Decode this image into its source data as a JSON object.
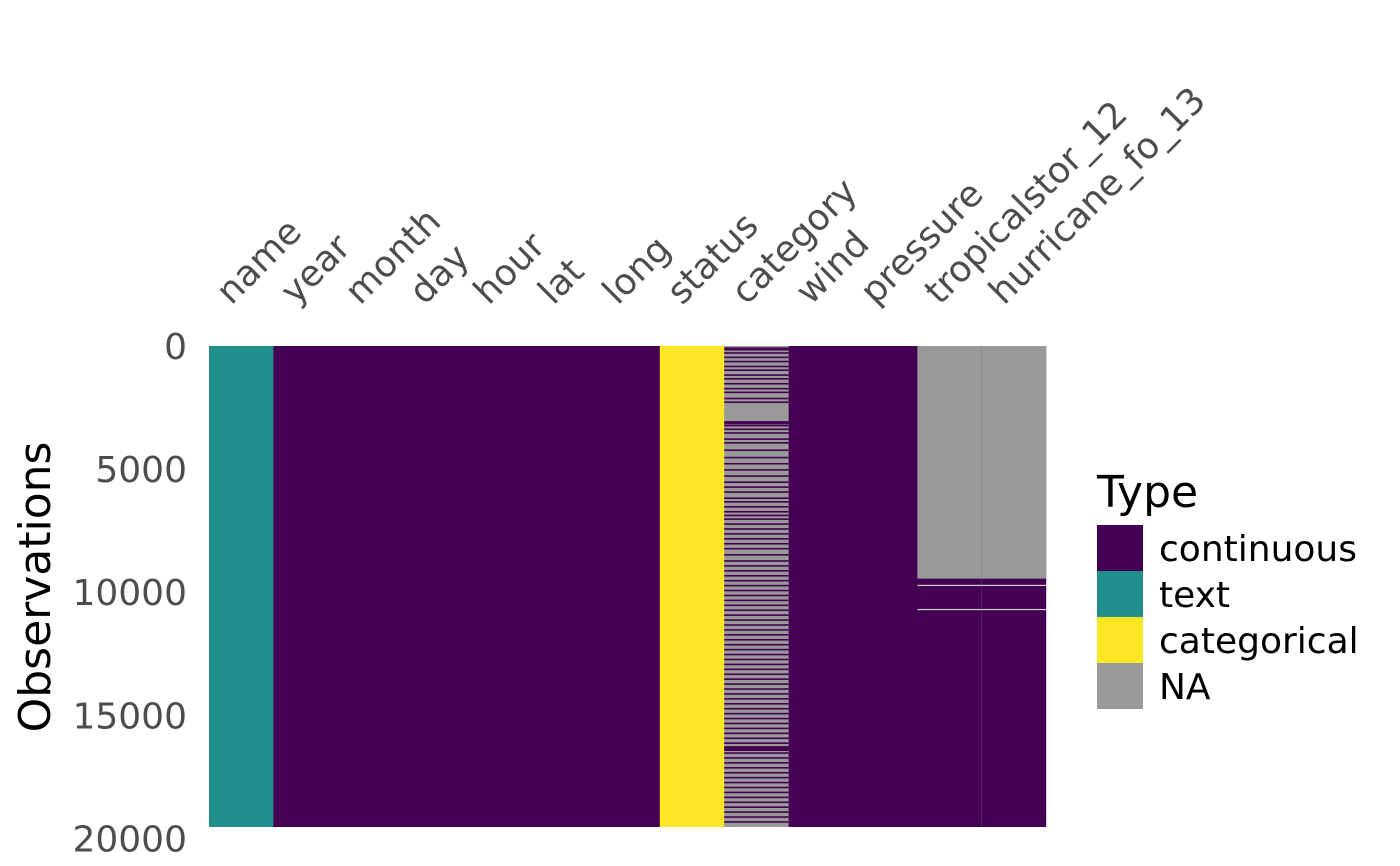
{
  "chart_data": {
    "type": "heatmap",
    "title": "",
    "xlabel": "",
    "ylabel": "Observations",
    "ylim": [
      0,
      19537
    ],
    "y_ticks": [
      "0",
      "5000",
      "10000",
      "15000",
      "20000"
    ],
    "y_tick_values": [
      0,
      5000,
      10000,
      15000,
      20000
    ],
    "columns": [
      {
        "name": "name",
        "type": "text"
      },
      {
        "name": "year",
        "type": "continuous"
      },
      {
        "name": "month",
        "type": "continuous"
      },
      {
        "name": "day",
        "type": "continuous"
      },
      {
        "name": "hour",
        "type": "continuous"
      },
      {
        "name": "lat",
        "type": "continuous"
      },
      {
        "name": "long",
        "type": "continuous"
      },
      {
        "name": "status",
        "type": "categorical"
      },
      {
        "name": "category",
        "type": "continuous",
        "mostly_na": true
      },
      {
        "name": "wind",
        "type": "continuous"
      },
      {
        "name": "pressure",
        "type": "continuous"
      },
      {
        "name": "tropicalstor_12",
        "type": "continuous",
        "na_range": [
          0,
          9450
        ]
      },
      {
        "name": "hurricane_fo_13",
        "type": "continuous",
        "na_range": [
          0,
          9450
        ]
      }
    ],
    "category_non_na_rows": [
      60,
      120,
      250,
      430,
      600,
      800,
      950,
      1150,
      1300,
      1500,
      1700,
      1850,
      2100,
      2250,
      3200,
      3350,
      3500,
      3750,
      3900,
      4200,
      4500,
      4750,
      5000,
      5250,
      5500,
      5700,
      5900,
      6150,
      6300,
      6500,
      6700,
      6850,
      7000,
      7200,
      7400,
      7600,
      7800,
      8000,
      8200,
      8450,
      8700,
      8900,
      9100,
      9300,
      9500,
      9700,
      9900,
      10100,
      10300,
      10500,
      10700,
      10900,
      11100,
      11300,
      11500,
      11700,
      11900,
      12100,
      12300,
      12500,
      12700,
      12900,
      13100,
      13300,
      13500,
      13700,
      13900,
      14100,
      14300,
      14500,
      14700,
      14900,
      15100,
      15300,
      15500,
      15700,
      15900,
      16100,
      16300,
      16500,
      16700,
      16900,
      17100,
      17300,
      17500,
      17700,
      17900,
      18100,
      18300,
      18500,
      18700,
      18900,
      19100,
      19300
    ],
    "category_thick_non_na": [
      [
        3050,
        3180
      ],
      [
        16250,
        16450
      ]
    ],
    "tropicalstor_non_na_gaps": [
      [
        9700,
        9720
      ],
      [
        10680,
        10700
      ]
    ],
    "legend": {
      "title": "Type",
      "placement": "right",
      "entries": [
        {
          "label": "continuous",
          "color": "#440154"
        },
        {
          "label": "text",
          "color": "#21908C"
        },
        {
          "label": "categorical",
          "color": "#FDE725"
        },
        {
          "label": "NA",
          "color": "#999999"
        }
      ]
    },
    "colors": {
      "continuous": "#440154",
      "text": "#21908C",
      "categorical": "#FDE725",
      "NA": "#999999"
    }
  }
}
